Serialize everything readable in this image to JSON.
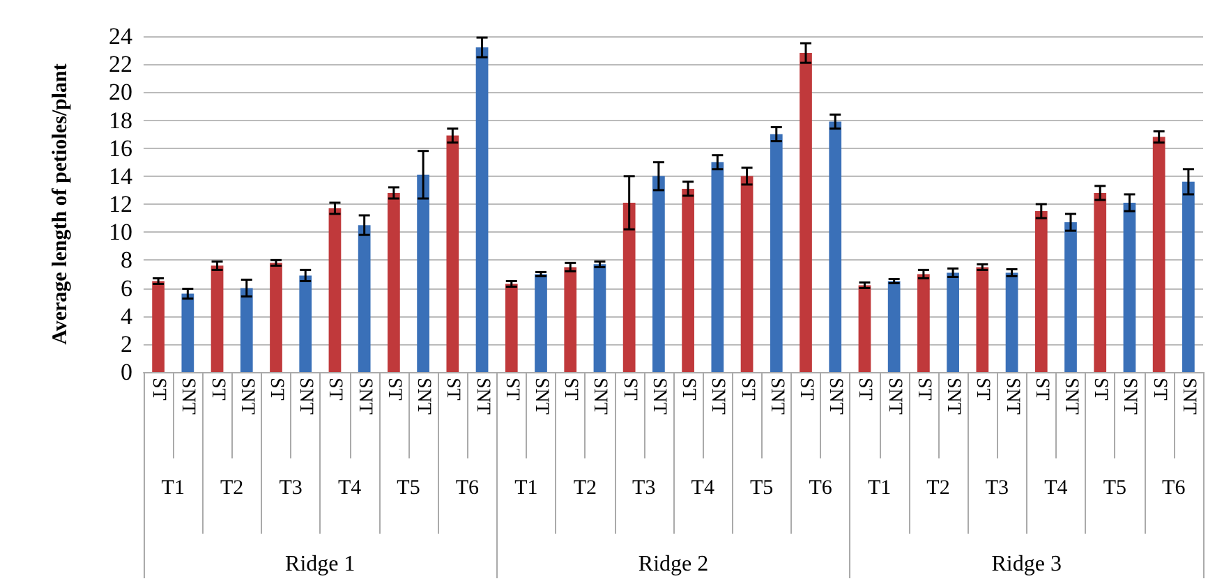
{
  "chart_data": {
    "type": "bar",
    "ylabel": "Average length of petioles/plant",
    "categories": [
      "ST",
      "SNT",
      "ST",
      "SNT",
      "ST",
      "SNT",
      "ST",
      "SNT",
      "ST",
      "SNT",
      "ST",
      "SNT",
      "ST",
      "SNT",
      "ST",
      "SNT",
      "ST",
      "SNT",
      "ST",
      "SNT",
      "ST",
      "SNT",
      "ST",
      "SNT",
      "ST",
      "SNT",
      "ST",
      "SNT",
      "ST",
      "SNT",
      "ST",
      "SNT",
      "ST",
      "SNT",
      "ST",
      "SNT"
    ],
    "values": [
      6.5,
      5.6,
      7.6,
      6.0,
      7.8,
      6.9,
      11.7,
      10.5,
      12.8,
      14.1,
      16.9,
      23.2,
      6.3,
      7.0,
      7.5,
      7.7,
      12.1,
      14.0,
      13.1,
      15.0,
      14.0,
      17.0,
      22.8,
      17.9,
      6.2,
      6.5,
      7.0,
      7.1,
      7.5,
      7.1,
      11.5,
      10.7,
      12.8,
      12.1,
      16.8,
      13.6
    ],
    "errors": [
      0.2,
      0.35,
      0.3,
      0.6,
      0.2,
      0.4,
      0.4,
      0.7,
      0.4,
      1.7,
      0.5,
      0.7,
      0.2,
      0.15,
      0.3,
      0.2,
      1.9,
      1.0,
      0.5,
      0.5,
      0.6,
      0.5,
      0.7,
      0.5,
      0.2,
      0.15,
      0.3,
      0.3,
      0.2,
      0.25,
      0.5,
      0.6,
      0.5,
      0.6,
      0.4,
      0.9
    ],
    "colors": [
      "#c0393b",
      "#3a70b8",
      "#c0393b",
      "#3a70b8",
      "#c0393b",
      "#3a70b8",
      "#c0393b",
      "#3a70b8",
      "#c0393b",
      "#3a70b8",
      "#c0393b",
      "#3a70b8",
      "#c0393b",
      "#3a70b8",
      "#c0393b",
      "#3a70b8",
      "#c0393b",
      "#3a70b8",
      "#c0393b",
      "#3a70b8",
      "#c0393b",
      "#3a70b8",
      "#c0393b",
      "#3a70b8",
      "#c0393b",
      "#3a70b8",
      "#c0393b",
      "#3a70b8",
      "#c0393b",
      "#3a70b8",
      "#c0393b",
      "#3a70b8",
      "#c0393b",
      "#3a70b8",
      "#c0393b",
      "#3a70b8"
    ],
    "annotations": [
      "T1",
      "T2",
      "T3",
      "T4",
      "T5",
      "T6",
      "T1",
      "T2",
      "T3",
      "T4",
      "T5",
      "T6",
      "T1",
      "T2",
      "T3",
      "T4",
      "T5",
      "T6",
      "Ridge 1",
      "Ridge 2",
      "Ridge 3"
    ],
    "ylim": [
      0,
      24
    ],
    "yticks": [
      0,
      2,
      4,
      6,
      8,
      10,
      12,
      14,
      16,
      18,
      20,
      22,
      24
    ],
    "grid": "y"
  }
}
